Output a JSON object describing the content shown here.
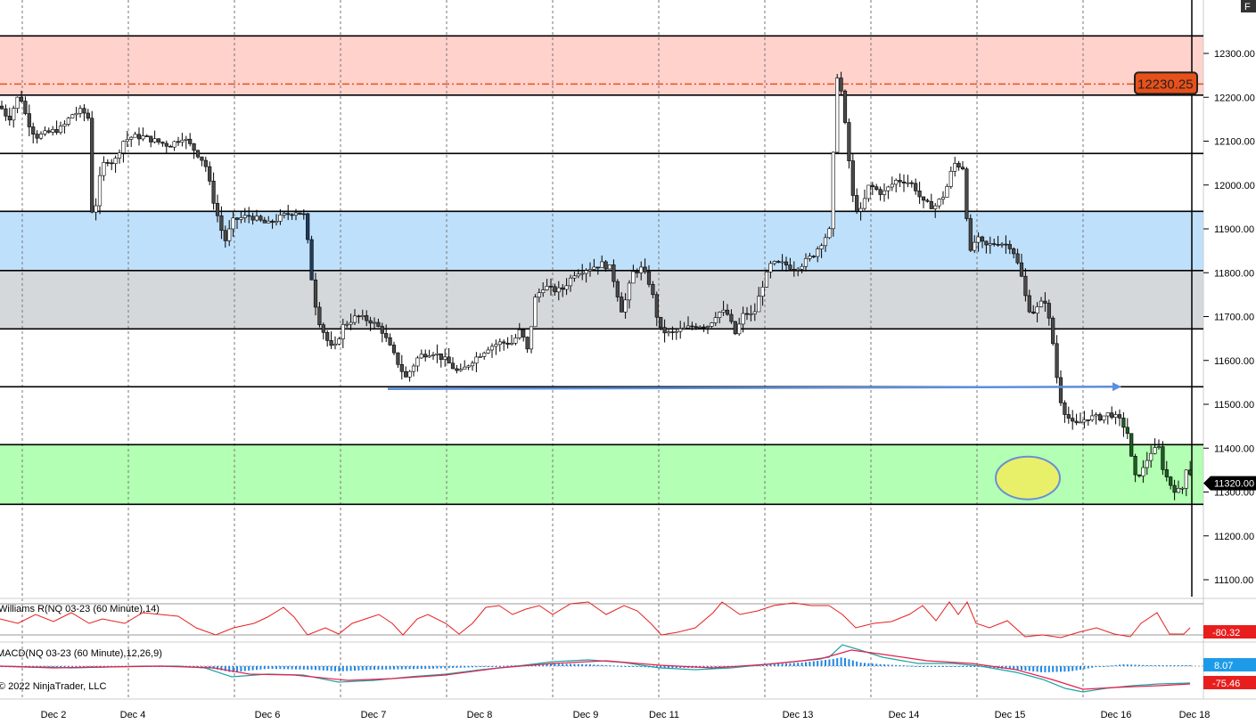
{
  "chart_data": {
    "type": "candlestick",
    "instrument": "NQ 03-23",
    "interval": "60 Minute",
    "price_axis": {
      "min": 11060,
      "max": 12380,
      "ticks": [
        12300,
        12200,
        12100,
        12000,
        11900,
        11800,
        11700,
        11600,
        11500,
        11400,
        11300,
        11200,
        11100
      ],
      "tick_labels": [
        "12300.00",
        "12200.00",
        "12100.00",
        "12000.00",
        "11900.00",
        "11800.00",
        "11700.00",
        "11600.00",
        "11500.00",
        "11400.00",
        "11300.00",
        "11200.00",
        "11100.00"
      ]
    },
    "x_labels": [
      {
        "label": "Dec 2",
        "pos": 60
      },
      {
        "label": "Dec 4",
        "pos": 149
      },
      {
        "label": "Dec 6",
        "pos": 300
      },
      {
        "label": "Dec 7",
        "pos": 419
      },
      {
        "label": "Dec 8",
        "pos": 538
      },
      {
        "label": "Dec 9",
        "pos": 657
      },
      {
        "label": "Dec 11",
        "pos": 745
      },
      {
        "label": "Dec 13",
        "pos": 895
      },
      {
        "label": "Dec 14",
        "pos": 1014
      },
      {
        "label": "Dec 15",
        "pos": 1133
      },
      {
        "label": "Dec 16",
        "pos": 1252
      },
      {
        "label": "Dec 18",
        "pos": 1340
      }
    ],
    "zones": [
      {
        "name": "resistance-zone",
        "low": 12205,
        "high": 12340,
        "color": "#ffd2cc"
      },
      {
        "name": "blue-zone",
        "low": 11805,
        "high": 11940,
        "color": "#bfe0fb"
      },
      {
        "name": "gray-zone",
        "low": 11672,
        "high": 11805,
        "color": "#d5d8db"
      },
      {
        "name": "support-zone",
        "low": 11272,
        "high": 11408,
        "color": "#b3ffb3"
      }
    ],
    "horizontal_lines": [
      12340,
      12205,
      12072,
      11940,
      11805,
      11672,
      11540,
      11408,
      11272
    ],
    "dash_line": {
      "value": 12230.25,
      "color": "#e8501a"
    },
    "trend_arrow": {
      "x1": 435,
      "y1": 11535,
      "x2": 1258,
      "y2": 11540,
      "color": "#5b8ede"
    },
    "ellipse": {
      "cx": 1153,
      "price": 11332,
      "color": "#e8f06a",
      "stroke": "#6b8fd4"
    },
    "price_path": [
      [
        0,
        12180
      ],
      [
        10,
        12150
      ],
      [
        22,
        12210
      ],
      [
        30,
        12150
      ],
      [
        40,
        12110
      ],
      [
        55,
        12120
      ],
      [
        70,
        12130
      ],
      [
        80,
        12160
      ],
      [
        92,
        12170
      ],
      [
        100,
        12150
      ],
      [
        104,
        11890
      ],
      [
        110,
        12000
      ],
      [
        118,
        12060
      ],
      [
        128,
        12050
      ],
      [
        138,
        12100
      ],
      [
        148,
        12110
      ],
      [
        160,
        12110
      ],
      [
        175,
        12100
      ],
      [
        190,
        12090
      ],
      [
        205,
        12110
      ],
      [
        218,
        12080
      ],
      [
        230,
        12050
      ],
      [
        240,
        11960
      ],
      [
        252,
        11870
      ],
      [
        262,
        11920
      ],
      [
        280,
        11930
      ],
      [
        300,
        11910
      ],
      [
        318,
        11930
      ],
      [
        332,
        11940
      ],
      [
        342,
        11930
      ],
      [
        350,
        11780
      ],
      [
        356,
        11700
      ],
      [
        366,
        11650
      ],
      [
        374,
        11620
      ],
      [
        385,
        11680
      ],
      [
        400,
        11700
      ],
      [
        416,
        11690
      ],
      [
        428,
        11670
      ],
      [
        440,
        11620
      ],
      [
        455,
        11560
      ],
      [
        470,
        11610
      ],
      [
        485,
        11620
      ],
      [
        500,
        11600
      ],
      [
        515,
        11570
      ],
      [
        530,
        11600
      ],
      [
        548,
        11630
      ],
      [
        560,
        11640
      ],
      [
        575,
        11640
      ],
      [
        584,
        11670
      ],
      [
        592,
        11620
      ],
      [
        600,
        11740
      ],
      [
        610,
        11770
      ],
      [
        620,
        11760
      ],
      [
        630,
        11760
      ],
      [
        645,
        11800
      ],
      [
        660,
        11810
      ],
      [
        675,
        11820
      ],
      [
        685,
        11810
      ],
      [
        698,
        11710
      ],
      [
        710,
        11800
      ],
      [
        720,
        11810
      ],
      [
        730,
        11770
      ],
      [
        740,
        11670
      ],
      [
        752,
        11660
      ],
      [
        765,
        11670
      ],
      [
        780,
        11680
      ],
      [
        795,
        11680
      ],
      [
        805,
        11710
      ],
      [
        815,
        11710
      ],
      [
        825,
        11660
      ],
      [
        835,
        11710
      ],
      [
        845,
        11700
      ],
      [
        855,
        11770
      ],
      [
        865,
        11820
      ],
      [
        880,
        11820
      ],
      [
        890,
        11810
      ],
      [
        900,
        11820
      ],
      [
        912,
        11840
      ],
      [
        922,
        11870
      ],
      [
        932,
        11900
      ],
      [
        938,
        12260
      ],
      [
        944,
        12210
      ],
      [
        950,
        12100
      ],
      [
        958,
        11950
      ],
      [
        966,
        11940
      ],
      [
        975,
        12000
      ],
      [
        990,
        11980
      ],
      [
        1005,
        12010
      ],
      [
        1015,
        12010
      ],
      [
        1025,
        12000
      ],
      [
        1035,
        11960
      ],
      [
        1048,
        11950
      ],
      [
        1060,
        11980
      ],
      [
        1070,
        12050
      ],
      [
        1080,
        12040
      ],
      [
        1088,
        11840
      ],
      [
        1095,
        11880
      ],
      [
        1105,
        11860
      ],
      [
        1120,
        11870
      ],
      [
        1135,
        11860
      ],
      [
        1145,
        11800
      ],
      [
        1153,
        11720
      ],
      [
        1160,
        11710
      ],
      [
        1172,
        11740
      ],
      [
        1180,
        11660
      ],
      [
        1188,
        11520
      ],
      [
        1195,
        11480
      ],
      [
        1205,
        11450
      ],
      [
        1220,
        11470
      ],
      [
        1235,
        11470
      ],
      [
        1245,
        11480
      ],
      [
        1258,
        11460
      ],
      [
        1266,
        11430
      ],
      [
        1272,
        11330
      ],
      [
        1282,
        11350
      ],
      [
        1290,
        11390
      ],
      [
        1300,
        11400
      ],
      [
        1305,
        11350
      ],
      [
        1312,
        11320
      ],
      [
        1320,
        11300
      ],
      [
        1327,
        11310
      ],
      [
        1332,
        11370
      ],
      [
        1338,
        11320
      ]
    ],
    "last_price_label": {
      "value": "11320.00",
      "price": 11320
    },
    "dash_label": {
      "value": "12230.25"
    },
    "williams_r": {
      "label": "Williams R(NQ 03-23 (60 Minute),14)",
      "value": "-80.32",
      "line_color": "#e81e1e",
      "badge_color": "#e81e1e",
      "path": [
        [
          0,
          695
        ],
        [
          20,
          700
        ],
        [
          40,
          690
        ],
        [
          60,
          698
        ],
        [
          80,
          688
        ],
        [
          100,
          700
        ],
        [
          115,
          695
        ],
        [
          140,
          700
        ],
        [
          160,
          688
        ],
        [
          180,
          690
        ],
        [
          200,
          692
        ],
        [
          220,
          705
        ],
        [
          242,
          713
        ],
        [
          262,
          705
        ],
        [
          285,
          700
        ],
        [
          300,
          693
        ],
        [
          318,
          682
        ],
        [
          330,
          693
        ],
        [
          345,
          713
        ],
        [
          365,
          705
        ],
        [
          380,
          712
        ],
        [
          395,
          700
        ],
        [
          410,
          695
        ],
        [
          425,
          690
        ],
        [
          440,
          700
        ],
        [
          452,
          713
        ],
        [
          468,
          695
        ],
        [
          480,
          690
        ],
        [
          500,
          700
        ],
        [
          515,
          712
        ],
        [
          530,
          700
        ],
        [
          545,
          682
        ],
        [
          560,
          680
        ],
        [
          575,
          690
        ],
        [
          590,
          684
        ],
        [
          605,
          680
        ],
        [
          620,
          690
        ],
        [
          640,
          678
        ],
        [
          660,
          676
        ],
        [
          680,
          690
        ],
        [
          700,
          680
        ],
        [
          715,
          686
        ],
        [
          730,
          700
        ],
        [
          742,
          713
        ],
        [
          760,
          710
        ],
        [
          780,
          705
        ],
        [
          800,
          688
        ],
        [
          810,
          676
        ],
        [
          830,
          690
        ],
        [
          850,
          686
        ],
        [
          868,
          680
        ],
        [
          890,
          677
        ],
        [
          910,
          680
        ],
        [
          930,
          680
        ],
        [
          945,
          690
        ],
        [
          960,
          705
        ],
        [
          980,
          700
        ],
        [
          1000,
          698
        ],
        [
          1020,
          690
        ],
        [
          1035,
          680
        ],
        [
          1050,
          697
        ],
        [
          1065,
          676
        ],
        [
          1075,
          690
        ],
        [
          1085,
          676
        ],
        [
          1095,
          700
        ],
        [
          1110,
          705
        ],
        [
          1130,
          697
        ],
        [
          1150,
          715
        ],
        [
          1170,
          713
        ],
        [
          1190,
          716
        ],
        [
          1210,
          710
        ],
        [
          1230,
          705
        ],
        [
          1250,
          712
        ],
        [
          1268,
          715
        ],
        [
          1280,
          700
        ],
        [
          1298,
          688
        ],
        [
          1312,
          712
        ],
        [
          1328,
          712
        ],
        [
          1335,
          705
        ]
      ]
    },
    "macd": {
      "label": "MACD(NQ 03-23 (60 Minute),12,26,9)",
      "value1": "8.07",
      "value2": "-75.46",
      "badge1_color": "#1e9be8",
      "badge2_color": "#e81e1e",
      "zero_y": 748,
      "macd_path": [
        [
          0,
          748
        ],
        [
          40,
          749
        ],
        [
          80,
          750
        ],
        [
          120,
          749
        ],
        [
          160,
          748
        ],
        [
          200,
          748
        ],
        [
          230,
          750
        ],
        [
          260,
          760
        ],
        [
          300,
          757
        ],
        [
          340,
          758
        ],
        [
          380,
          766
        ],
        [
          420,
          764
        ],
        [
          460,
          760
        ],
        [
          500,
          757
        ],
        [
          540,
          752
        ],
        [
          580,
          748
        ],
        [
          620,
          743
        ],
        [
          660,
          741
        ],
        [
          700,
          744
        ],
        [
          740,
          750
        ],
        [
          780,
          752
        ],
        [
          820,
          750
        ],
        [
          860,
          746
        ],
        [
          900,
          742
        ],
        [
          930,
          738
        ],
        [
          945,
          724
        ],
        [
          965,
          730
        ],
        [
          990,
          738
        ],
        [
          1030,
          745
        ],
        [
          1070,
          745
        ],
        [
          1100,
          748
        ],
        [
          1140,
          755
        ],
        [
          1170,
          763
        ],
        [
          1195,
          773
        ],
        [
          1215,
          777
        ],
        [
          1240,
          773
        ],
        [
          1270,
          770
        ],
        [
          1300,
          768
        ],
        [
          1335,
          767
        ]
      ],
      "signal_path": [
        [
          0,
          748
        ],
        [
          60,
          750
        ],
        [
          120,
          749
        ],
        [
          180,
          748
        ],
        [
          240,
          750
        ],
        [
          280,
          757
        ],
        [
          330,
          758
        ],
        [
          390,
          764
        ],
        [
          440,
          762
        ],
        [
          500,
          758
        ],
        [
          560,
          750
        ],
        [
          620,
          745
        ],
        [
          680,
          742
        ],
        [
          740,
          747
        ],
        [
          800,
          750
        ],
        [
          860,
          746
        ],
        [
          920,
          740
        ],
        [
          955,
          730
        ],
        [
          985,
          734
        ],
        [
          1040,
          742
        ],
        [
          1090,
          745
        ],
        [
          1140,
          752
        ],
        [
          1180,
          763
        ],
        [
          1215,
          774
        ],
        [
          1250,
          772
        ],
        [
          1300,
          770
        ],
        [
          1335,
          768
        ]
      ],
      "histogram": [
        [
          0,
          749
        ],
        [
          40,
          750
        ],
        [
          80,
          749
        ],
        [
          120,
          748
        ],
        [
          200,
          748
        ],
        [
          240,
          751
        ],
        [
          260,
          755
        ],
        [
          300,
          751
        ],
        [
          350,
          752
        ],
        [
          380,
          754
        ],
        [
          420,
          752
        ],
        [
          480,
          751
        ],
        [
          540,
          749
        ],
        [
          580,
          747
        ],
        [
          620,
          745
        ],
        [
          660,
          746
        ],
        [
          700,
          748
        ],
        [
          740,
          750
        ],
        [
          780,
          750
        ],
        [
          820,
          749
        ],
        [
          860,
          746
        ],
        [
          900,
          744
        ],
        [
          935,
          740
        ],
        [
          945,
          738
        ],
        [
          965,
          744
        ],
        [
          990,
          746
        ],
        [
          1030,
          748
        ],
        [
          1080,
          748
        ],
        [
          1100,
          749
        ],
        [
          1140,
          752
        ],
        [
          1170,
          755
        ],
        [
          1200,
          754
        ],
        [
          1230,
          749
        ],
        [
          1260,
          746
        ],
        [
          1290,
          747
        ],
        [
          1320,
          747
        ]
      ]
    },
    "copyright": "© 2022 NinjaTrader, LLC",
    "corner_badge": "F"
  }
}
